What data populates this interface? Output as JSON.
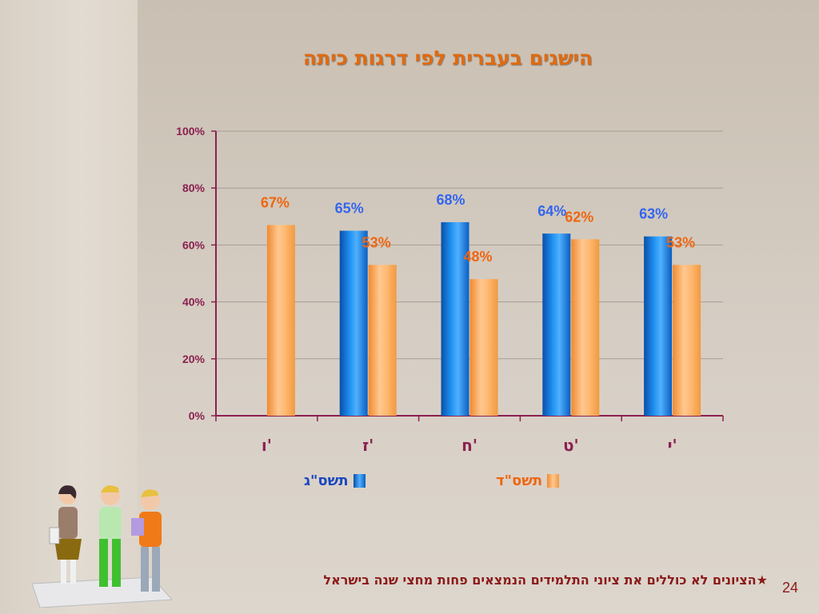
{
  "slide": {
    "title": "הישגים בעברית לפי דרגות כיתה",
    "footnote": "★הציונים לא כוללים את ציוני התלמידים הנמצאים פחות מחצי שנה בישראל",
    "page_number": "24"
  },
  "colors": {
    "accent_title": "#e06a10",
    "axis": "#8b2050",
    "footnote": "#8b1a1a",
    "series_blue_label": "#3366ee",
    "series_orange_label": "#ee6611"
  },
  "chart_data": {
    "type": "bar",
    "title": "הישגים בעברית לפי דרגות כיתה",
    "categories": [
      "ו'",
      "ז'",
      "ח'",
      "ט'",
      "י'"
    ],
    "series": [
      {
        "name": "תשס\"ג",
        "values": [
          null,
          65,
          68,
          64,
          63
        ],
        "labels": [
          "",
          "65%",
          "68%",
          "64%",
          "63%"
        ]
      },
      {
        "name": "תשס\"ד",
        "values": [
          67,
          53,
          48,
          62,
          53
        ],
        "labels": [
          "67%",
          "53%",
          "48%",
          "62%",
          "53%"
        ]
      }
    ],
    "ylim": [
      0,
      100
    ],
    "yticks": [
      0,
      20,
      40,
      60,
      80,
      100
    ],
    "ytick_labels": [
      "0%",
      "20%",
      "40%",
      "60%",
      "80%",
      "100%"
    ],
    "grid": true,
    "legend_position": "bottom",
    "category_order": "right-to-left"
  }
}
